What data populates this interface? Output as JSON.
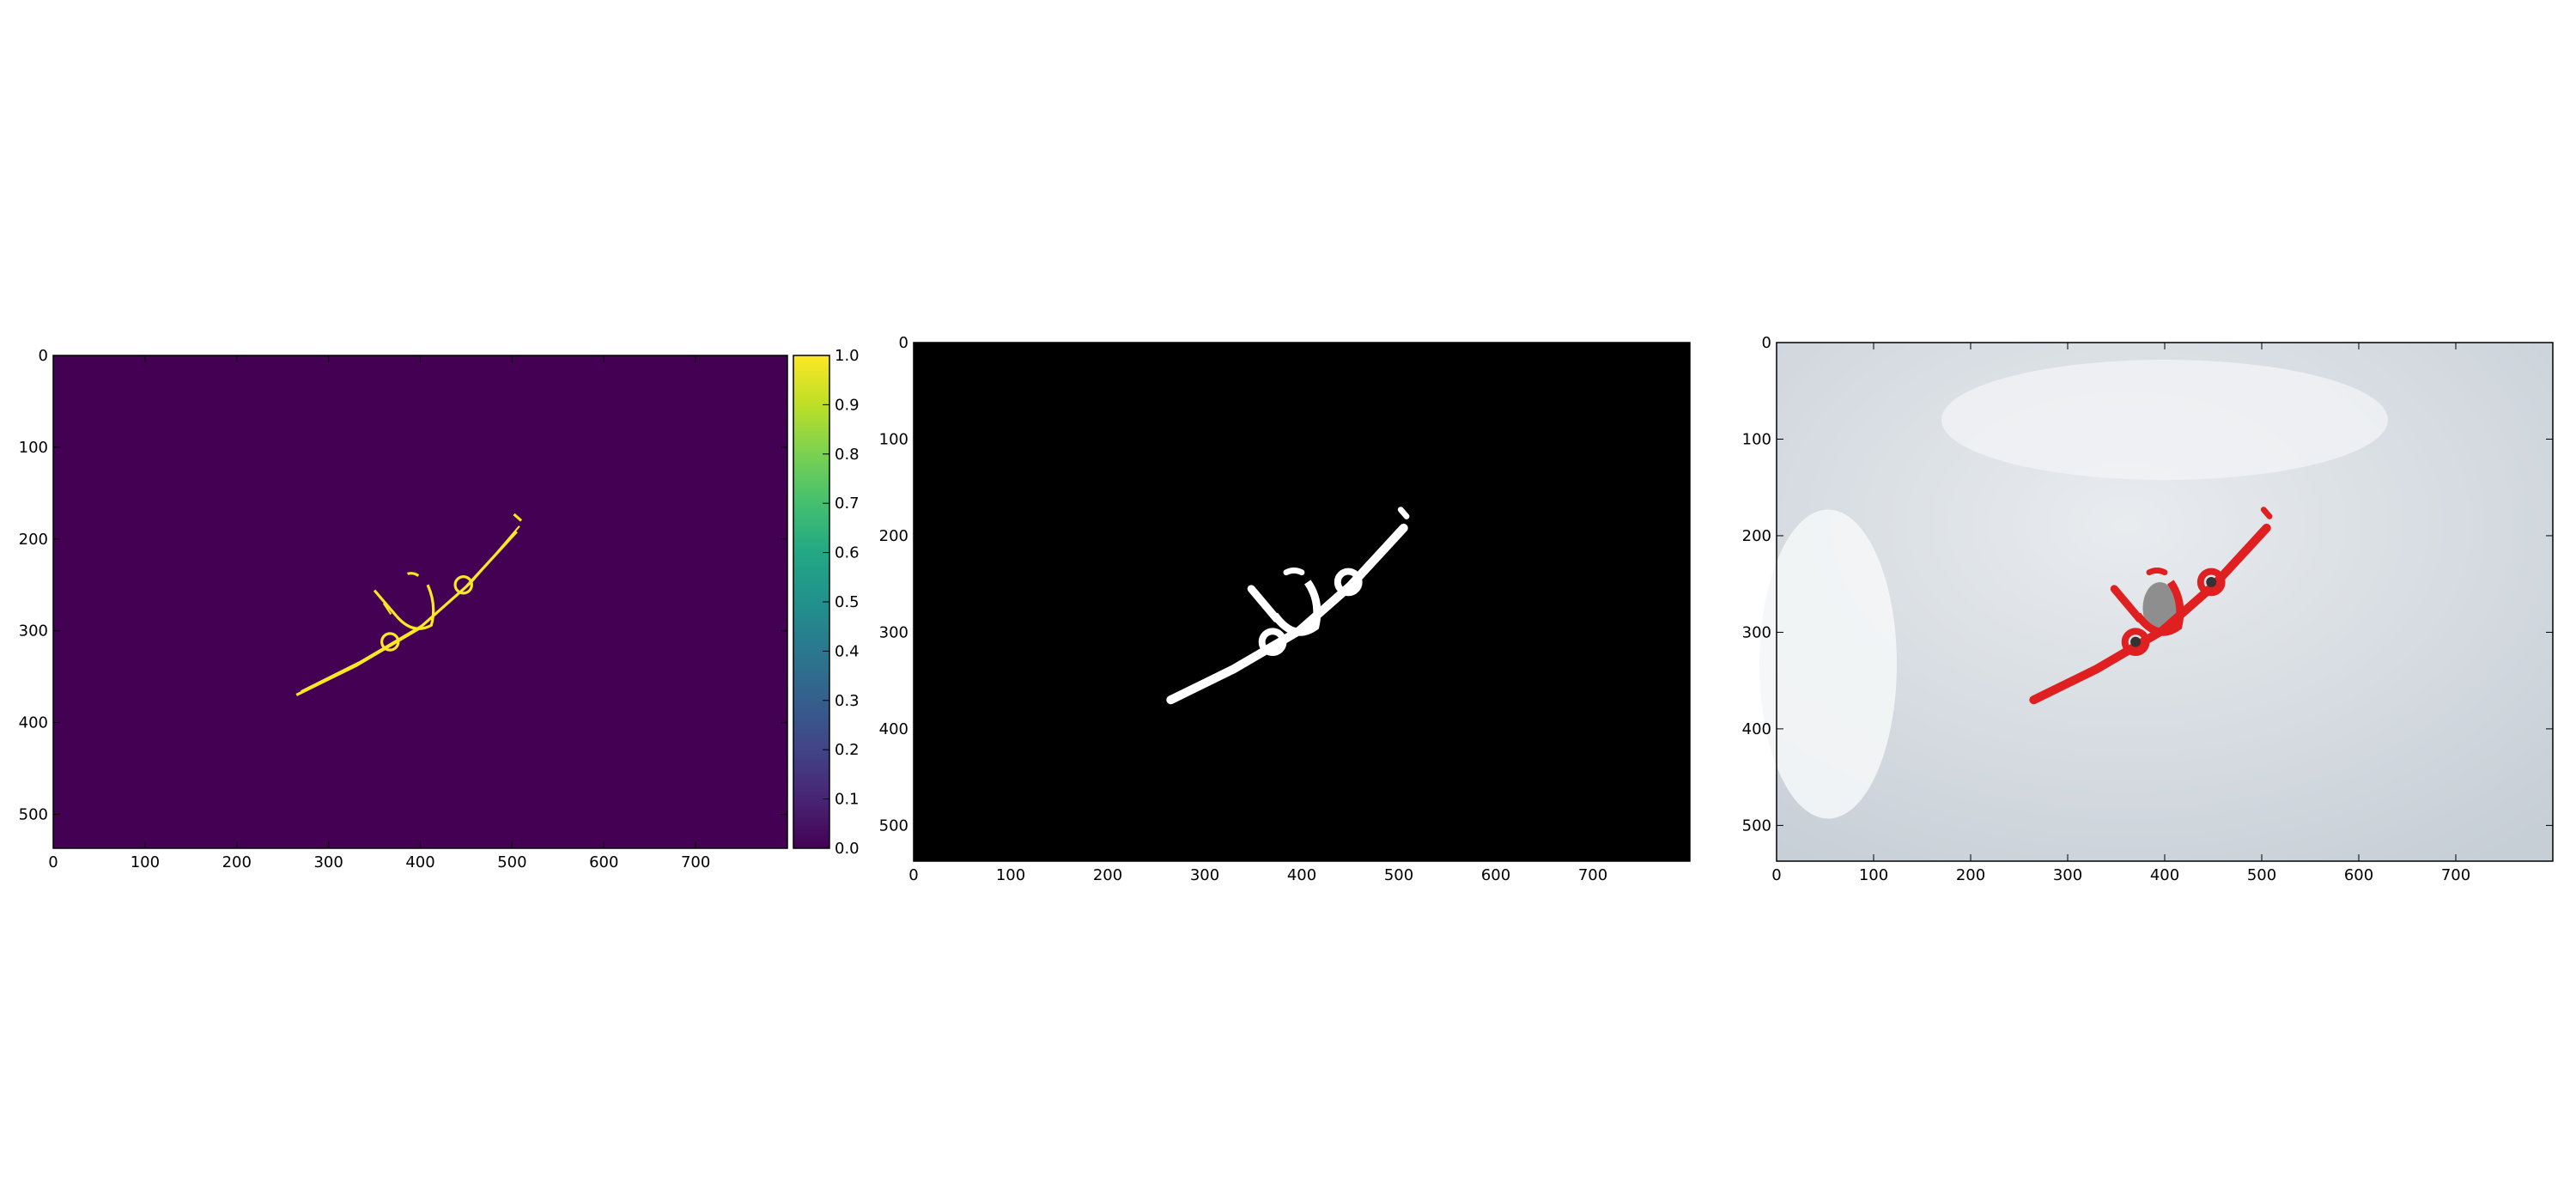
{
  "colors": {
    "edge_background": "#440154",
    "edge_foreground": "#fde725",
    "mask_background": "#000000",
    "mask_foreground": "#ffffff",
    "overlay_contour": "#e02020",
    "sky": "#dfe4e8",
    "axes_frame": "#000000"
  },
  "colormap": "viridis",
  "chart_data": [
    {
      "type": "heatmap",
      "title": "",
      "xlabel": "",
      "ylabel": "",
      "content": "edge map of aircraft",
      "xlim": [
        0,
        800
      ],
      "ylim": [
        537,
        0
      ],
      "xticks": [
        0,
        100,
        200,
        300,
        400,
        500,
        600,
        700
      ],
      "yticks": [
        0,
        100,
        200,
        300,
        400,
        500
      ],
      "colorbar": {
        "range": [
          0.0,
          1.0
        ],
        "ticks": [
          "0.0",
          "0.1",
          "0.2",
          "0.3",
          "0.4",
          "0.5",
          "0.6",
          "0.7",
          "0.8",
          "0.9",
          "1.0"
        ]
      }
    },
    {
      "type": "heatmap",
      "title": "",
      "xlabel": "",
      "ylabel": "",
      "content": "binary mask of aircraft",
      "xlim": [
        0,
        800
      ],
      "ylim": [
        537,
        0
      ],
      "xticks": [
        0,
        100,
        200,
        300,
        400,
        500,
        600,
        700
      ],
      "yticks": [
        0,
        100,
        200,
        300,
        400,
        500
      ]
    },
    {
      "type": "heatmap",
      "title": "",
      "xlabel": "",
      "ylabel": "",
      "content": "photo of aircraft in cloudy sky with red mask overlay",
      "xlim": [
        0,
        800
      ],
      "ylim": [
        537,
        0
      ],
      "xticks": [
        0,
        100,
        200,
        300,
        400,
        500,
        600,
        700
      ],
      "yticks": [
        0,
        100,
        200,
        300,
        400,
        500
      ]
    }
  ]
}
